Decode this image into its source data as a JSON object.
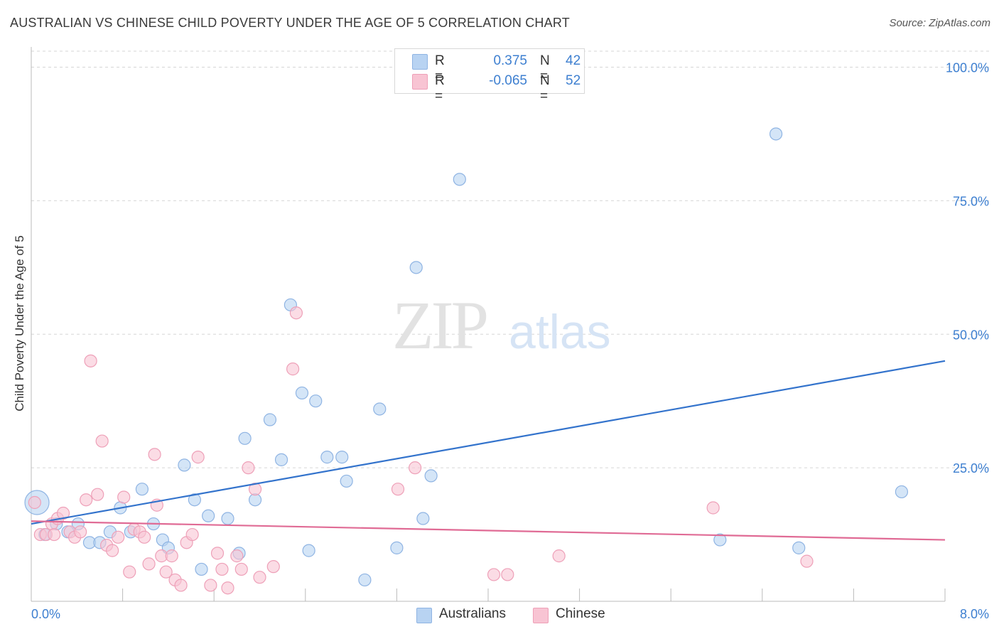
{
  "title": "AUSTRALIAN VS CHINESE CHILD POVERTY UNDER THE AGE OF 5 CORRELATION CHART",
  "source": "Source: ZipAtlas.com",
  "watermark": {
    "zip": "ZIP",
    "atlas": "atlas"
  },
  "colors": {
    "australians_fill": "#b8d3f2",
    "australians_stroke": "#8fb4e3",
    "australians_line": "#3373cc",
    "chinese_fill": "#f8c4d3",
    "chinese_stroke": "#eea0b8",
    "chinese_line": "#e06b95",
    "axis_text": "#3d7fd0",
    "grid": "#d6d6d6"
  },
  "legend_top": [
    {
      "r_label": "R =",
      "r_value": "0.375",
      "n_label": "N =",
      "n_value": "42"
    },
    {
      "r_label": "R =",
      "r_value": "-0.065",
      "n_label": "N =",
      "n_value": "52"
    }
  ],
  "legend_bottom": [
    "Australians",
    "Chinese"
  ],
  "chart_data": {
    "type": "scatter",
    "title": "AUSTRALIAN VS CHINESE CHILD POVERTY UNDER THE AGE OF 5 CORRELATION CHART",
    "xlabel": "",
    "ylabel": "Child Poverty Under the Age of 5",
    "xlim": [
      0,
      8
    ],
    "ylim": [
      0,
      103
    ],
    "x_tick_labels": [
      "0.0%",
      "8.0%"
    ],
    "y_ticks": [
      25,
      50,
      75,
      100
    ],
    "y_tick_labels": [
      "25.0%",
      "50.0%",
      "75.0%",
      "100.0%"
    ],
    "grid": true,
    "legend_position": "top-center",
    "series": [
      {
        "name": "Australians",
        "r": 0.375,
        "n": 42,
        "trend": {
          "x": [
            0,
            8
          ],
          "y": [
            14.5,
            45
          ]
        },
        "points": [
          [
            0.05,
            18.5,
            "large"
          ],
          [
            0.12,
            12.5
          ],
          [
            0.22,
            14.5
          ],
          [
            0.32,
            13
          ],
          [
            0.41,
            14.5
          ],
          [
            0.51,
            11
          ],
          [
            0.6,
            11
          ],
          [
            0.69,
            13
          ],
          [
            0.78,
            17.5
          ],
          [
            0.87,
            13
          ],
          [
            0.97,
            21
          ],
          [
            1.07,
            14.5
          ],
          [
            1.15,
            11.5
          ],
          [
            1.2,
            10
          ],
          [
            1.34,
            25.5
          ],
          [
            1.43,
            19
          ],
          [
            1.49,
            6
          ],
          [
            1.55,
            16
          ],
          [
            1.72,
            15.5
          ],
          [
            1.82,
            9
          ],
          [
            1.87,
            30.5
          ],
          [
            1.96,
            19
          ],
          [
            2.09,
            34
          ],
          [
            2.19,
            26.5
          ],
          [
            2.27,
            55.5
          ],
          [
            2.37,
            39
          ],
          [
            2.43,
            9.5
          ],
          [
            2.49,
            37.5
          ],
          [
            2.59,
            27
          ],
          [
            2.72,
            27
          ],
          [
            2.76,
            22.5
          ],
          [
            2.92,
            4
          ],
          [
            3.05,
            36
          ],
          [
            3.2,
            10
          ],
          [
            3.37,
            62.5
          ],
          [
            3.43,
            15.5
          ],
          [
            3.5,
            23.5
          ],
          [
            3.75,
            79
          ],
          [
            6.03,
            11.5
          ],
          [
            6.52,
            87.5
          ],
          [
            6.72,
            10
          ],
          [
            7.62,
            20.5
          ]
        ]
      },
      {
        "name": "Chinese",
        "r": -0.065,
        "n": 52,
        "trend": {
          "x": [
            0,
            8
          ],
          "y": [
            15,
            11.5
          ]
        },
        "points": [
          [
            0.03,
            18.5
          ],
          [
            0.08,
            12.5
          ],
          [
            0.13,
            12.5
          ],
          [
            0.18,
            14.5
          ],
          [
            0.23,
            15.5
          ],
          [
            0.28,
            16.5
          ],
          [
            0.34,
            13
          ],
          [
            0.38,
            12
          ],
          [
            0.43,
            13
          ],
          [
            0.48,
            19
          ],
          [
            0.52,
            45
          ],
          [
            0.58,
            20
          ],
          [
            0.62,
            30
          ],
          [
            0.66,
            10.5
          ],
          [
            0.71,
            9.5
          ],
          [
            0.76,
            12
          ],
          [
            0.81,
            19.5
          ],
          [
            0.86,
            5.5
          ],
          [
            0.9,
            13.5
          ],
          [
            0.95,
            13
          ],
          [
            0.99,
            12
          ],
          [
            1.03,
            7
          ],
          [
            1.08,
            27.5
          ],
          [
            1.1,
            18
          ],
          [
            1.14,
            8.5
          ],
          [
            1.18,
            5.5
          ],
          [
            1.23,
            8.5
          ],
          [
            1.26,
            4
          ],
          [
            1.31,
            3
          ],
          [
            1.36,
            11
          ],
          [
            1.41,
            12.5
          ],
          [
            1.46,
            27
          ],
          [
            1.57,
            3
          ],
          [
            1.63,
            9
          ],
          [
            1.67,
            6
          ],
          [
            1.72,
            2.5
          ],
          [
            1.8,
            8.5
          ],
          [
            1.84,
            6
          ],
          [
            1.9,
            25
          ],
          [
            1.96,
            21
          ],
          [
            2.0,
            4.5
          ],
          [
            2.12,
            6.5
          ],
          [
            2.29,
            43.5
          ],
          [
            2.32,
            54
          ],
          [
            3.21,
            21
          ],
          [
            3.36,
            25
          ],
          [
            4.05,
            5
          ],
          [
            4.17,
            5
          ],
          [
            4.62,
            8.5
          ],
          [
            5.97,
            17.5
          ],
          [
            6.79,
            7.5
          ],
          [
            0.2,
            12.5
          ]
        ]
      }
    ]
  }
}
